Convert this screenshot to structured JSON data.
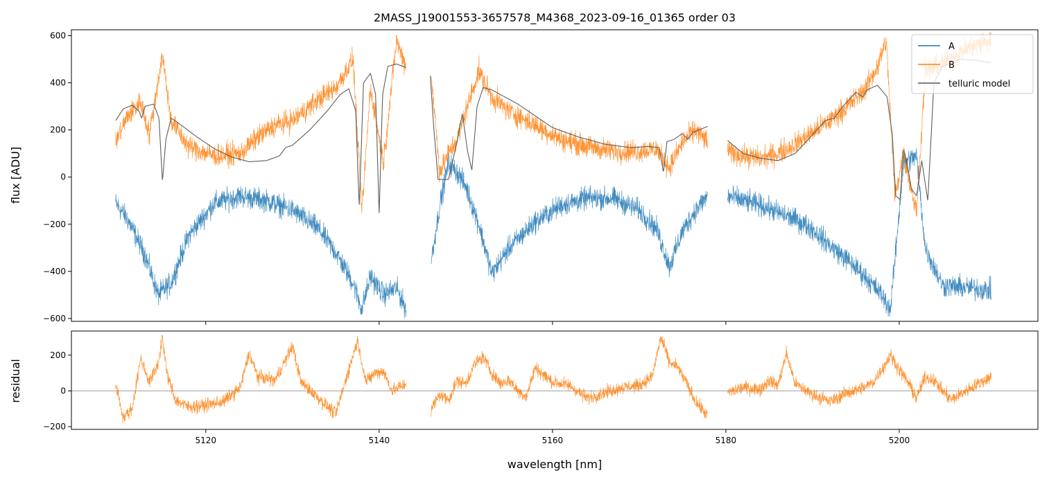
{
  "chart_data": [
    {
      "type": "line",
      "title": "2MASS_J19001553-3657578_M4368_2023-09-16_01365  order 03",
      "ylabel": "flux [ADU]",
      "xlim": [
        5104.5,
        5216.0
      ],
      "ylim": [
        -612,
        625
      ],
      "x_ticks": [
        5120,
        5140,
        5160,
        5180,
        5200
      ],
      "y_ticks": [
        -600,
        -400,
        -200,
        0,
        200,
        400,
        600
      ],
      "y_tick_labels": [
        "−600",
        "−400",
        "−200",
        "0",
        "200",
        "400",
        "600"
      ],
      "legend_position": "top-right",
      "series": [
        {
          "name": "A",
          "color": "#1f77b4",
          "segments": [
            {
              "x": [
                5109.6,
                5111,
                5113,
                5114.5,
                5116,
                5118,
                5121,
                5124,
                5127,
                5130,
                5133,
                5135,
                5137,
                5138,
                5139,
                5140.5,
                5142,
                5143.1
              ],
              "y": [
                -110,
                -180,
                -330,
                -500,
                -450,
                -250,
                -110,
                -80,
                -100,
                -140,
                -220,
                -320,
                -450,
                -560,
                -420,
                -500,
                -470,
                -560
              ]
            },
            {
              "x": [
                5146,
                5147,
                5148,
                5149,
                5150,
                5151.5,
                5153,
                5155,
                5158,
                5161,
                5164,
                5167,
                5170,
                5172,
                5173.5,
                5175,
                5176.5,
                5177.9
              ],
              "y": [
                -360,
                -120,
                60,
                20,
                -40,
                -200,
                -410,
                -300,
                -190,
                -120,
                -90,
                -90,
                -140,
                -220,
                -380,
                -230,
                -140,
                -80
              ]
            },
            {
              "x": [
                5180.2,
                5182,
                5184,
                5186,
                5188,
                5190,
                5192,
                5194,
                5196,
                5198,
                5199,
                5200.5,
                5202,
                5203,
                5205,
                5208,
                5210.6
              ],
              "y": [
                -80,
                -100,
                -120,
                -150,
                -180,
                -220,
                -290,
                -350,
                -420,
                -500,
                -560,
                60,
                90,
                -300,
                -460,
                -470,
                -480
              ]
            }
          ]
        },
        {
          "name": "B",
          "color": "#ff7f0e",
          "segments": [
            {
              "x": [
                5109.6,
                5111,
                5112.5,
                5113.5,
                5115,
                5116,
                5118,
                5121,
                5124,
                5126,
                5128,
                5130,
                5133,
                5135,
                5137,
                5138,
                5139,
                5140.5,
                5142,
                5143.1
              ],
              "y": [
                150,
                260,
                320,
                180,
                520,
                240,
                130,
                90,
                100,
                170,
                220,
                240,
                330,
                380,
                500,
                -150,
                380,
                60,
                580,
                470
              ]
            },
            {
              "x": [
                5146,
                5147,
                5148,
                5149,
                5150,
                5151.5,
                5153,
                5155,
                5158,
                5161,
                5164,
                5167,
                5170,
                5172,
                5173.5,
                5175,
                5176.5,
                5177.9
              ],
              "y": [
                440,
                20,
                100,
                160,
                280,
                450,
                340,
                280,
                220,
                160,
                130,
                110,
                110,
                120,
                40,
                150,
                200,
                150
              ]
            },
            {
              "x": [
                5180.2,
                5182,
                5184,
                5186,
                5188,
                5190,
                5192,
                5194,
                5196,
                5197.5,
                5198.5,
                5199.5,
                5200.5,
                5202,
                5203,
                5205,
                5208,
                5210.6
              ],
              "y": [
                110,
                90,
                80,
                100,
                140,
                190,
                240,
                300,
                370,
                470,
                580,
                -80,
                100,
                -150,
                450,
                480,
                550,
                580
              ]
            }
          ]
        },
        {
          "name": "telluric model",
          "color": "#555555",
          "segments": [
            {
              "x": [
                5109.6,
                5110.5,
                5111.5,
                5112.3,
                5112.6,
                5113,
                5114,
                5114.6,
                5115,
                5115.4,
                5116,
                5117,
                5119,
                5121,
                5123,
                5125,
                5127,
                5128.5,
                5129.2,
                5130,
                5132,
                5134,
                5135.5,
                5136.5,
                5137.3,
                5137.7,
                5138.2,
                5139,
                5139.6,
                5140,
                5140.4,
                5141,
                5142,
                5143.1
              ],
              "y": [
                240,
                290,
                305,
                280,
                250,
                300,
                310,
                250,
                -20,
                160,
                250,
                225,
                170,
                120,
                85,
                65,
                70,
                90,
                125,
                135,
                200,
                280,
                350,
                375,
                280,
                -130,
                400,
                440,
                350,
                -160,
                350,
                470,
                480,
                465
              ]
            },
            {
              "x": [
                5145.9,
                5146.3,
                5146.8,
                5148,
                5149,
                5149.6,
                5150.2,
                5150.7,
                5151.3,
                5152,
                5153,
                5154.5,
                5156,
                5158,
                5160,
                5163,
                5166,
                5169,
                5171,
                5172.3,
                5172.8,
                5173.2,
                5174,
                5175,
                5175.6,
                5176.2,
                5177.9
              ],
              "y": [
                430,
                210,
                -10,
                -10,
                150,
                270,
                110,
                30,
                300,
                380,
                370,
                340,
                310,
                260,
                210,
                170,
                140,
                125,
                130,
                125,
                20,
                150,
                160,
                185,
                160,
                190,
                215
              ]
            },
            {
              "x": [
                5180.2,
                5182,
                5184,
                5186,
                5188,
                5190,
                5191.5,
                5192.5,
                5193.5,
                5195,
                5195.8,
                5196.3,
                5197.5,
                5198.6,
                5199.2,
                5199.6,
                5200.1,
                5200.5,
                5200.9,
                5201.4,
                5202,
                5202.6,
                5203.3,
                5204,
                5205,
                5207,
                5209,
                5210.6
              ],
              "y": [
                155,
                100,
                80,
                70,
                100,
                180,
                240,
                250,
                300,
                360,
                340,
                370,
                390,
                340,
                180,
                -80,
                -95,
                120,
                60,
                -50,
                -80,
                70,
                -100,
                400,
                470,
                500,
                495,
                485
              ]
            }
          ]
        }
      ]
    },
    {
      "type": "line",
      "ylabel": "residual",
      "xlabel": "wavelength [nm]",
      "xlim": [
        5104.5,
        5216.0
      ],
      "ylim": [
        -215,
        335
      ],
      "x_ticks": [
        5120,
        5140,
        5160,
        5180,
        5200
      ],
      "x_tick_labels": [
        "5120",
        "5140",
        "5160",
        "5180",
        "5200"
      ],
      "y_ticks": [
        -200,
        0,
        200
      ],
      "y_tick_labels": [
        "−200",
        "0",
        "200"
      ],
      "zero_line": 0,
      "series": [
        {
          "name": "B",
          "color": "#ff7f0e",
          "segments": [
            {
              "x": [
                5109.6,
                5110.5,
                5111.5,
                5112.5,
                5113.5,
                5114.5,
                5115,
                5115.5,
                5116.5,
                5118,
                5120,
                5122,
                5124,
                5125,
                5126,
                5128,
                5130,
                5131,
                5133,
                5135,
                5136.5,
                5137.5,
                5138.5,
                5139.5,
                5140.5,
                5141.5,
                5143.1
              ],
              "y": [
                40,
                -150,
                -100,
                180,
                50,
                150,
                300,
                100,
                -50,
                -90,
                -80,
                -60,
                20,
                210,
                80,
                60,
                250,
                50,
                -40,
                -130,
                120,
                280,
                50,
                100,
                110,
                0,
                40
              ]
            },
            {
              "x": [
                5146,
                5147,
                5148,
                5149,
                5150,
                5151,
                5152,
                5153,
                5154,
                5155,
                5156,
                5157,
                5158,
                5160,
                5162,
                5164,
                5166,
                5168,
                5170,
                5171.5,
                5172.5,
                5173.5,
                5174.5,
                5175.5,
                5176.5,
                5177.9
              ],
              "y": [
                -100,
                -20,
                -50,
                60,
                40,
                150,
                190,
                100,
                40,
                60,
                0,
                -30,
                130,
                50,
                30,
                -40,
                -10,
                20,
                30,
                80,
                300,
                160,
                130,
                40,
                -60,
                -140
              ]
            },
            {
              "x": [
                5180.2,
                5182,
                5184,
                5185,
                5186,
                5187,
                5188,
                5190,
                5192,
                5194,
                5196,
                5197,
                5198,
                5199,
                5200,
                5201,
                5202,
                5203,
                5204,
                5205,
                5206,
                5208,
                5210.6
              ],
              "y": [
                -10,
                20,
                10,
                60,
                30,
                210,
                40,
                -20,
                -60,
                -10,
                20,
                50,
                120,
                200,
                120,
                50,
                -40,
                80,
                60,
                0,
                -50,
                10,
                80
              ]
            }
          ]
        }
      ]
    }
  ]
}
